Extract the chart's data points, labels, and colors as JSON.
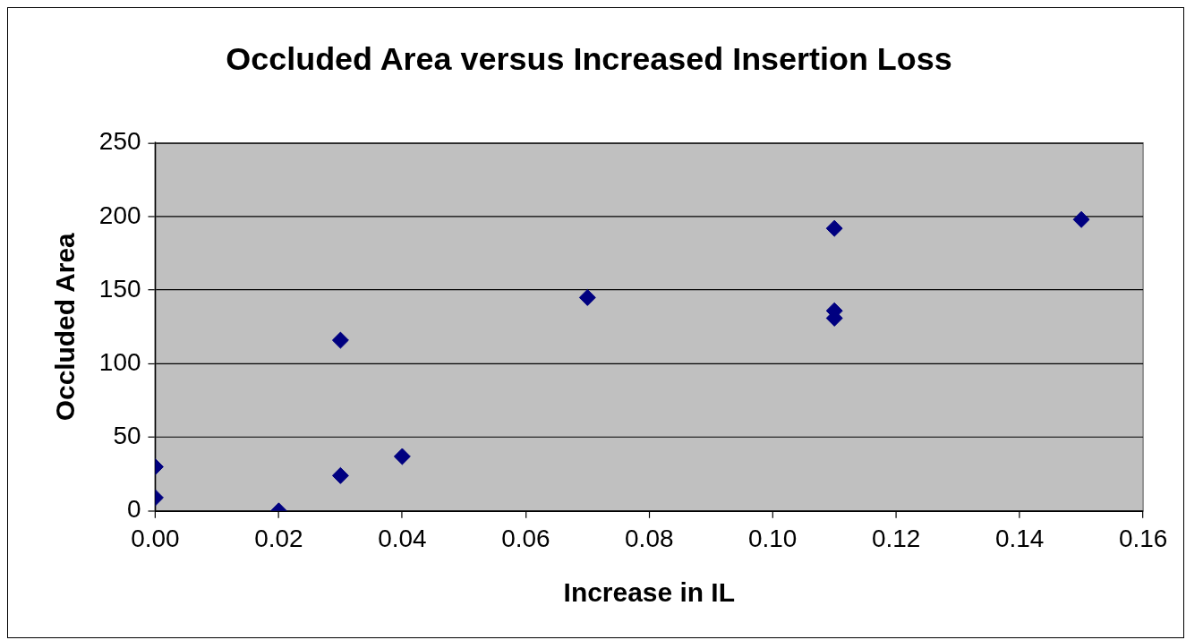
{
  "chart_data": {
    "type": "scatter",
    "title": "Occluded Area versus Increased Insertion Loss",
    "xlabel": "Increase in IL",
    "ylabel": "Occluded Area",
    "x": [
      0,
      0,
      0.02,
      0.03,
      0.03,
      0.04,
      0.07,
      0.11,
      0.11,
      0.11,
      0.15
    ],
    "values": [
      30,
      9,
      0,
      116,
      24,
      37,
      145,
      192,
      136,
      131,
      198
    ],
    "color": "#000080",
    "marker": "diamond",
    "grid": "y",
    "legend": false,
    "xlim": [
      0,
      0.16
    ],
    "xticks": [
      {
        "value": 0,
        "label": "0.00"
      },
      {
        "value": 0.02,
        "label": "0.02"
      },
      {
        "value": 0.04,
        "label": "0.04"
      },
      {
        "value": 0.06,
        "label": "0.06"
      },
      {
        "value": 0.08,
        "label": "0.08"
      },
      {
        "value": 0.1,
        "label": "0.10"
      },
      {
        "value": 0.12,
        "label": "0.12"
      },
      {
        "value": 0.14,
        "label": "0.14"
      },
      {
        "value": 0.16,
        "label": "0.16"
      }
    ],
    "ylim": [
      0,
      250
    ],
    "yticks": [
      0,
      50,
      100,
      150,
      200,
      250
    ]
  }
}
